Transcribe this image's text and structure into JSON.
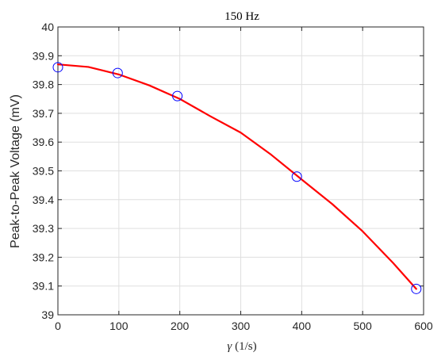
{
  "chart_data": {
    "type": "scatter",
    "title": "150 Hz",
    "xlabel_symbol": "γ",
    "xlabel_unit": " (1/s)",
    "ylabel": "Peak-to-Peak Voltage (mV)",
    "xlim": [
      0,
      600
    ],
    "ylim": [
      39,
      40
    ],
    "xticks": [
      0,
      100,
      200,
      300,
      400,
      500,
      600
    ],
    "yticks": [
      39,
      39.1,
      39.2,
      39.3,
      39.4,
      39.5,
      39.6,
      39.7,
      39.8,
      39.9,
      40
    ],
    "grid": true,
    "series": [
      {
        "kind": "markers",
        "marker": "circle",
        "color": "#0000ff",
        "x": [
          0,
          98,
          196,
          392,
          588
        ],
        "y": [
          39.86,
          39.84,
          39.76,
          39.48,
          39.09
        ]
      },
      {
        "kind": "fit-line",
        "color": "#ff0000",
        "x": [
          0,
          50,
          100,
          150,
          200,
          250,
          300,
          350,
          400,
          450,
          500,
          550,
          588
        ],
        "y": [
          39.87,
          39.861,
          39.835,
          39.797,
          39.75,
          39.69,
          39.633,
          39.556,
          39.47,
          39.385,
          39.29,
          39.18,
          39.09
        ]
      }
    ]
  }
}
